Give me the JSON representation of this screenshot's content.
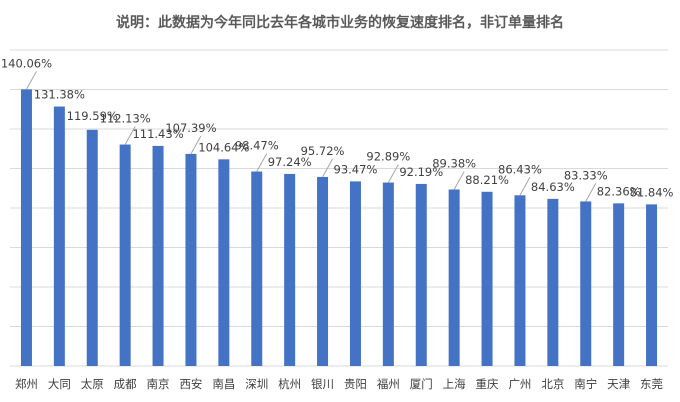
{
  "chart_data": {
    "type": "bar",
    "title": "说明：此数据为今年同比去年各城市业务的恢复速度排名，非订单量排名",
    "xlabel": "",
    "ylabel": "",
    "categories": [
      "郑州",
      "大同",
      "太原",
      "成都",
      "南京",
      "西安",
      "南昌",
      "深圳",
      "杭州",
      "银川",
      "贵阳",
      "福州",
      "厦门",
      "上海",
      "重庆",
      "广州",
      "北京",
      "南宁",
      "天津",
      "东莞"
    ],
    "values": [
      140.06,
      131.38,
      119.59,
      112.13,
      111.43,
      107.39,
      104.64,
      98.47,
      97.24,
      95.72,
      93.47,
      92.89,
      92.19,
      89.38,
      88.21,
      86.43,
      84.63,
      83.33,
      82.36,
      81.84
    ],
    "labels": [
      "140.06%",
      "131.38%",
      "119.59%",
      "112.13%",
      "111.43%",
      "107.39%",
      "104.64%",
      "98.47%",
      "97.24%",
      "95.72%",
      "93.47%",
      "92.89%",
      "92.19%",
      "89.38%",
      "88.21%",
      "86.43%",
      "84.63%",
      "83.33%",
      "82.36%",
      "81.84%"
    ],
    "ylim": [
      0,
      160
    ],
    "grid": true,
    "legend": "none",
    "bar_color": "#4472C4",
    "grid_color": "#d9d9d9",
    "leader_color": "#a6a6a6"
  }
}
